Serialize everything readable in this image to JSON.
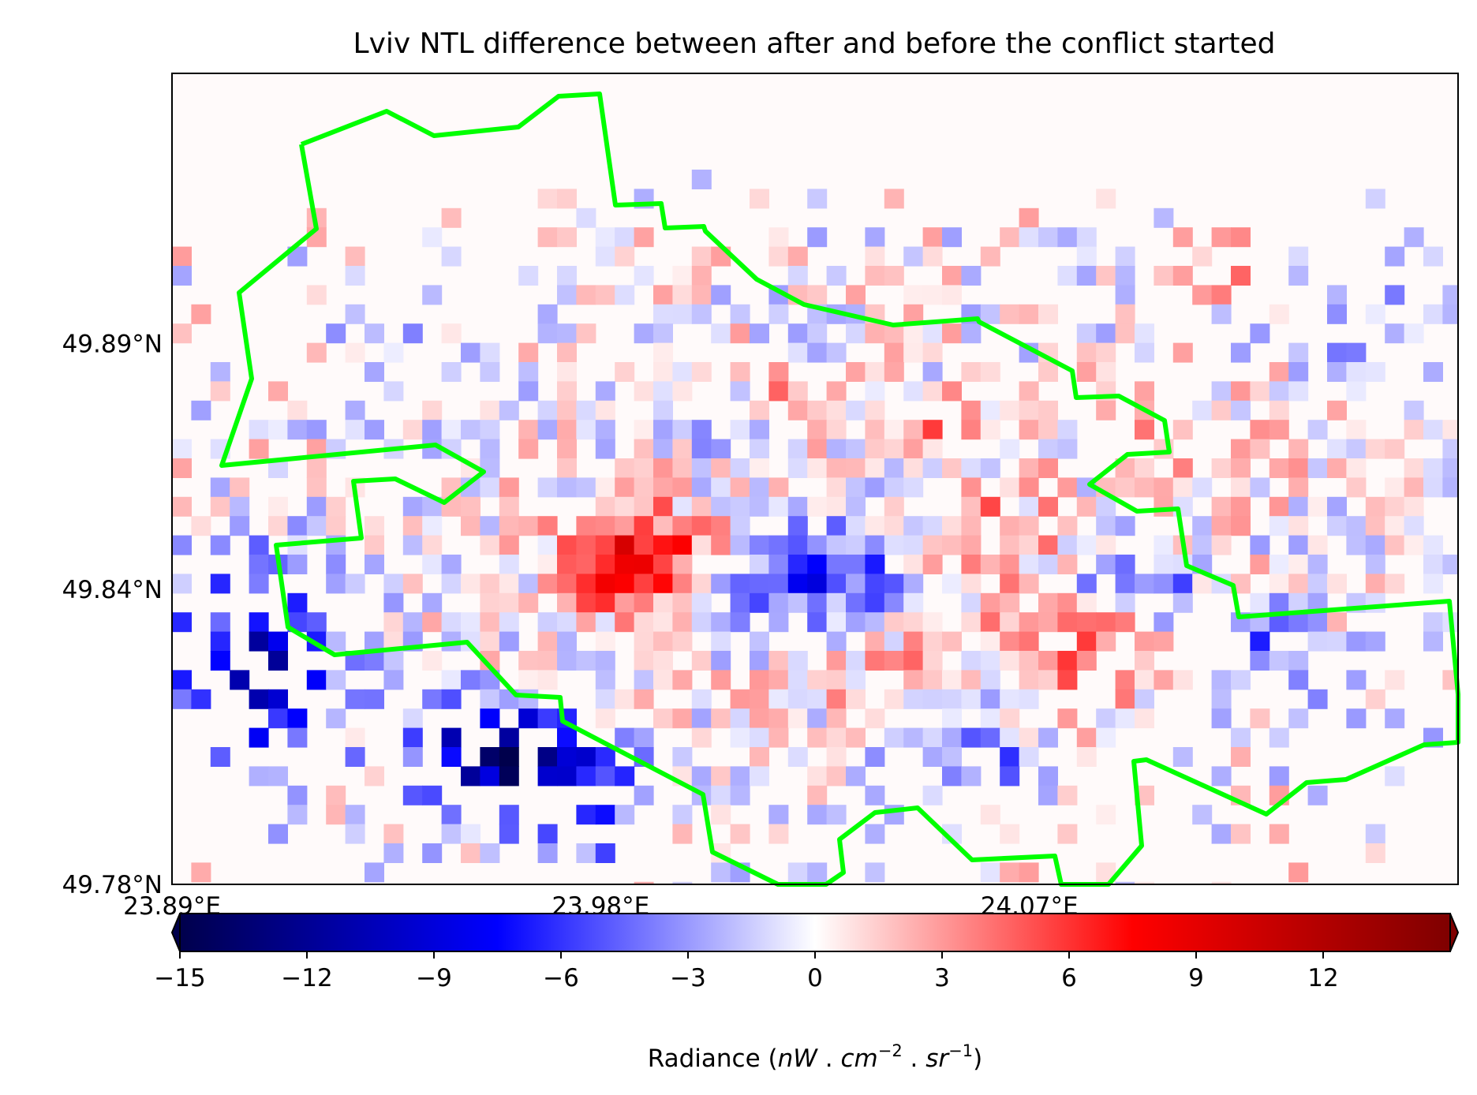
{
  "title": "Lviv NTL difference between after and before the conflict started",
  "map": {
    "lon_range": [
      23.89,
      24.16
    ],
    "lat_range": [
      49.78,
      49.945
    ],
    "lon_ticks": [
      {
        "value": 23.89,
        "label": "23.89°E"
      },
      {
        "value": 23.98,
        "label": "23.98°E"
      },
      {
        "value": 24.07,
        "label": "24.07°E"
      }
    ],
    "lat_ticks": [
      {
        "value": 49.78,
        "label": "49.78°N"
      },
      {
        "value": 49.84,
        "label": "49.84°N"
      },
      {
        "value": 49.89,
        "label": "49.89°N"
      }
    ],
    "boundary_color": "#00ff00",
    "background_color": "#fffafa"
  },
  "colorbar": {
    "cmap": "seismic",
    "vmin": -15,
    "vmax": 15,
    "extend": "both",
    "ticks": [
      {
        "value": -15,
        "label": "−15"
      },
      {
        "value": -12,
        "label": "−12"
      },
      {
        "value": -9,
        "label": "−9"
      },
      {
        "value": -6,
        "label": "−6"
      },
      {
        "value": -3,
        "label": "−3"
      },
      {
        "value": 0,
        "label": "0"
      },
      {
        "value": 3,
        "label": "3"
      },
      {
        "value": 6,
        "label": "6"
      },
      {
        "value": 9,
        "label": "9"
      },
      {
        "value": 12,
        "label": "12"
      }
    ],
    "label_prefix": "Radiance (",
    "label_units": [
      "nW",
      " . ",
      "cm",
      "−2",
      " . ",
      "sr",
      "−1"
    ],
    "label_suffix": ")"
  }
}
